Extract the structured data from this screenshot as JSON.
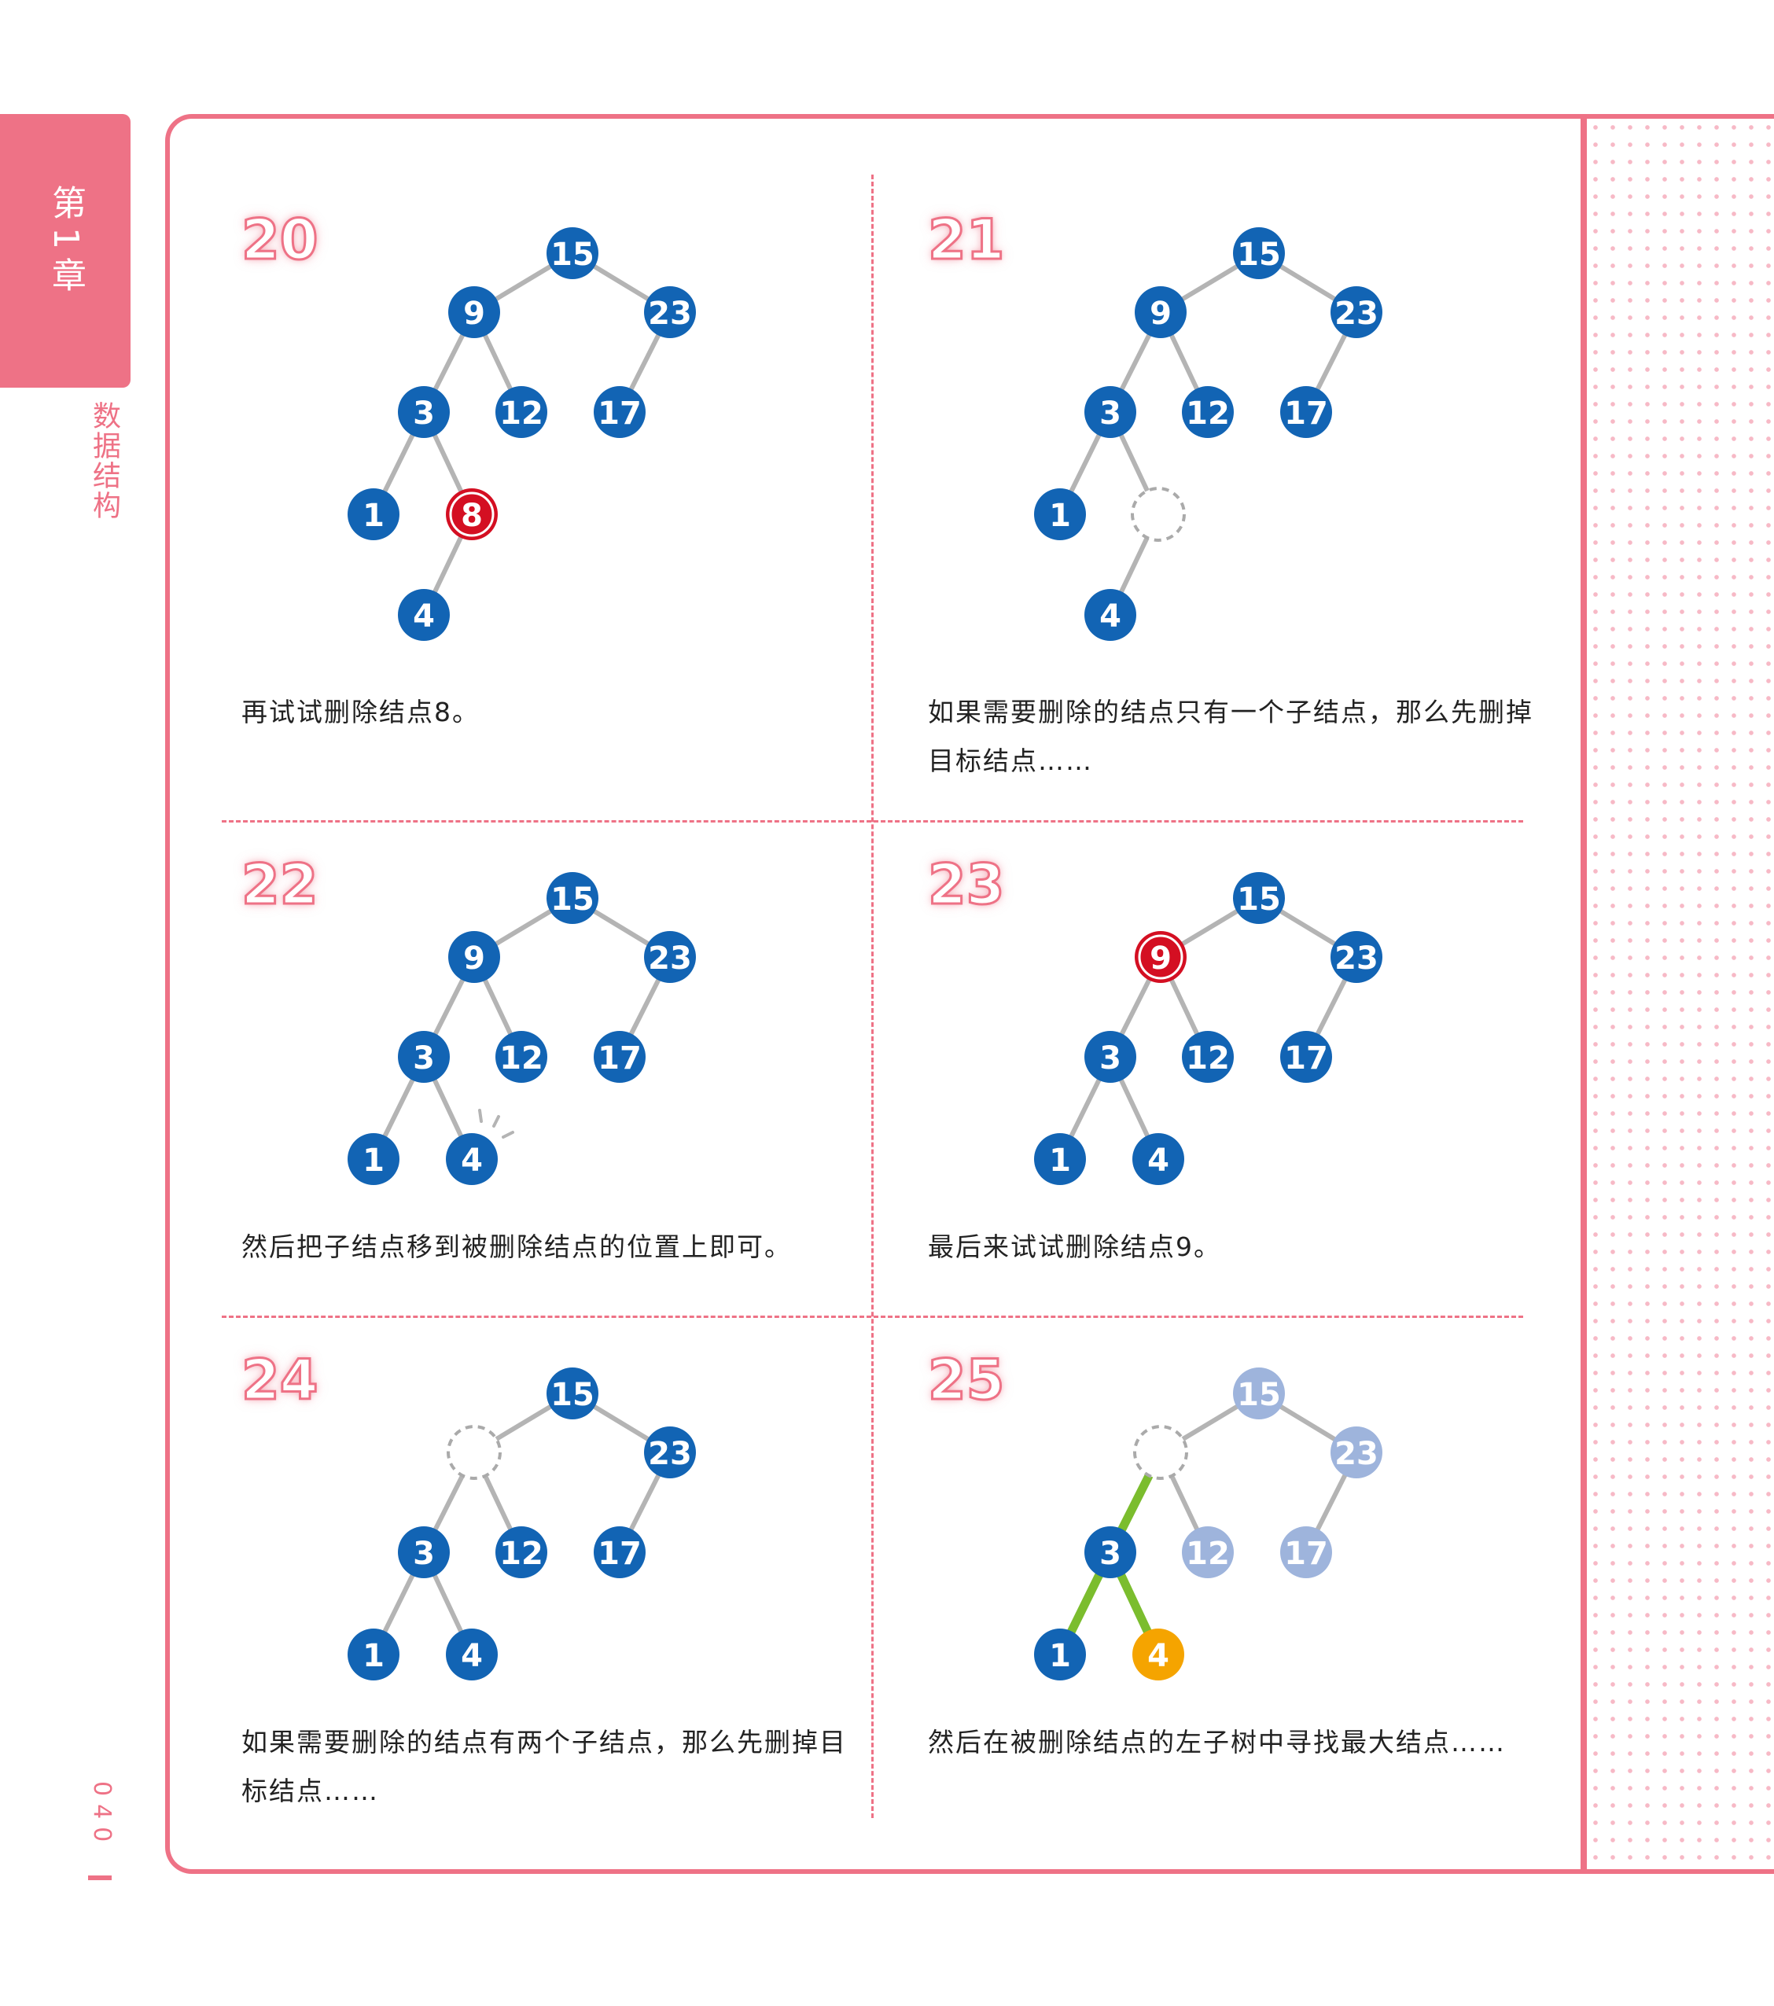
{
  "chapter": {
    "label": "第1章",
    "subtitle": "数据结构"
  },
  "page_number": "040",
  "colors": {
    "accent": "#ee7286",
    "node": "#1264b4",
    "node_faded": "#9eb4dc",
    "node_deleted": "#d40f22",
    "node_highlight": "#f5a400",
    "edge": "#b4b4b4",
    "edge_highlight": "#7bbd2e",
    "placeholder": "#aaaaaa"
  },
  "panels": [
    {
      "number": "20",
      "caption": "再试试删除结点8。",
      "nodes": [
        {
          "id": "n15",
          "label": "15",
          "state": "normal"
        },
        {
          "id": "n9",
          "label": "9",
          "state": "normal"
        },
        {
          "id": "n23",
          "label": "23",
          "state": "normal"
        },
        {
          "id": "n3",
          "label": "3",
          "state": "normal"
        },
        {
          "id": "n12",
          "label": "12",
          "state": "normal"
        },
        {
          "id": "n17",
          "label": "17",
          "state": "normal"
        },
        {
          "id": "n1",
          "label": "1",
          "state": "normal"
        },
        {
          "id": "n8",
          "label": "8",
          "state": "deleted"
        },
        {
          "id": "n4",
          "label": "4",
          "state": "normal"
        }
      ],
      "edges": [
        [
          "n15",
          "n9"
        ],
        [
          "n15",
          "n23"
        ],
        [
          "n9",
          "n3"
        ],
        [
          "n9",
          "n12"
        ],
        [
          "n23",
          "n17"
        ],
        [
          "n3",
          "n1"
        ],
        [
          "n3",
          "n8"
        ],
        [
          "n8",
          "n4"
        ]
      ],
      "highlight_edges": []
    },
    {
      "number": "21",
      "caption": "如果需要删除的结点只有一个子结点，那么先删掉目标结点……",
      "nodes": [
        {
          "id": "n15",
          "label": "15",
          "state": "normal"
        },
        {
          "id": "n9",
          "label": "9",
          "state": "normal"
        },
        {
          "id": "n23",
          "label": "23",
          "state": "normal"
        },
        {
          "id": "n3",
          "label": "3",
          "state": "normal"
        },
        {
          "id": "n12",
          "label": "12",
          "state": "normal"
        },
        {
          "id": "n17",
          "label": "17",
          "state": "normal"
        },
        {
          "id": "n1",
          "label": "1",
          "state": "normal"
        },
        {
          "id": "n8",
          "label": "",
          "state": "empty"
        },
        {
          "id": "n4",
          "label": "4",
          "state": "normal"
        }
      ],
      "edges": [
        [
          "n15",
          "n9"
        ],
        [
          "n15",
          "n23"
        ],
        [
          "n9",
          "n3"
        ],
        [
          "n9",
          "n12"
        ],
        [
          "n23",
          "n17"
        ],
        [
          "n3",
          "n1"
        ],
        [
          "n3",
          "n8"
        ],
        [
          "n8",
          "n4"
        ]
      ],
      "highlight_edges": []
    },
    {
      "number": "22",
      "caption": "然后把子结点移到被删除结点的位置上即可。",
      "nodes": [
        {
          "id": "n15",
          "label": "15",
          "state": "normal"
        },
        {
          "id": "n9",
          "label": "9",
          "state": "normal"
        },
        {
          "id": "n23",
          "label": "23",
          "state": "normal"
        },
        {
          "id": "n3",
          "label": "3",
          "state": "normal"
        },
        {
          "id": "n12",
          "label": "12",
          "state": "normal"
        },
        {
          "id": "n17",
          "label": "17",
          "state": "normal"
        },
        {
          "id": "n1",
          "label": "1",
          "state": "normal"
        },
        {
          "id": "n4m",
          "label": "4",
          "state": "moved"
        }
      ],
      "edges": [
        [
          "n15",
          "n9"
        ],
        [
          "n15",
          "n23"
        ],
        [
          "n9",
          "n3"
        ],
        [
          "n9",
          "n12"
        ],
        [
          "n23",
          "n17"
        ],
        [
          "n3",
          "n1"
        ],
        [
          "n3",
          "n4m"
        ]
      ],
      "highlight_edges": []
    },
    {
      "number": "23",
      "caption": "最后来试试删除结点9。",
      "nodes": [
        {
          "id": "n15",
          "label": "15",
          "state": "normal"
        },
        {
          "id": "n9",
          "label": "9",
          "state": "deleted"
        },
        {
          "id": "n23",
          "label": "23",
          "state": "normal"
        },
        {
          "id": "n3",
          "label": "3",
          "state": "normal"
        },
        {
          "id": "n12",
          "label": "12",
          "state": "normal"
        },
        {
          "id": "n17",
          "label": "17",
          "state": "normal"
        },
        {
          "id": "n1",
          "label": "1",
          "state": "normal"
        },
        {
          "id": "n4m",
          "label": "4",
          "state": "normal"
        }
      ],
      "edges": [
        [
          "n15",
          "n9"
        ],
        [
          "n15",
          "n23"
        ],
        [
          "n9",
          "n3"
        ],
        [
          "n9",
          "n12"
        ],
        [
          "n23",
          "n17"
        ],
        [
          "n3",
          "n1"
        ],
        [
          "n3",
          "n4m"
        ]
      ],
      "highlight_edges": []
    },
    {
      "number": "24",
      "caption": "如果需要删除的结点有两个子结点，那么先删掉目标结点……",
      "nodes": [
        {
          "id": "n15",
          "label": "15",
          "state": "normal"
        },
        {
          "id": "n9",
          "label": "",
          "state": "empty"
        },
        {
          "id": "n23",
          "label": "23",
          "state": "normal"
        },
        {
          "id": "n3",
          "label": "3",
          "state": "normal"
        },
        {
          "id": "n12",
          "label": "12",
          "state": "normal"
        },
        {
          "id": "n17",
          "label": "17",
          "state": "normal"
        },
        {
          "id": "n1",
          "label": "1",
          "state": "normal"
        },
        {
          "id": "n4m",
          "label": "4",
          "state": "normal"
        }
      ],
      "edges": [
        [
          "n15",
          "n9"
        ],
        [
          "n15",
          "n23"
        ],
        [
          "n9",
          "n3"
        ],
        [
          "n9",
          "n12"
        ],
        [
          "n23",
          "n17"
        ],
        [
          "n3",
          "n1"
        ],
        [
          "n3",
          "n4m"
        ]
      ],
      "highlight_edges": []
    },
    {
      "number": "25",
      "caption": "然后在被删除结点的左子树中寻找最大结点……",
      "nodes": [
        {
          "id": "n15",
          "label": "15",
          "state": "faded"
        },
        {
          "id": "n9",
          "label": "",
          "state": "empty"
        },
        {
          "id": "n23",
          "label": "23",
          "state": "faded"
        },
        {
          "id": "n3",
          "label": "3",
          "state": "normal"
        },
        {
          "id": "n12",
          "label": "12",
          "state": "faded"
        },
        {
          "id": "n17",
          "label": "17",
          "state": "faded"
        },
        {
          "id": "n1",
          "label": "1",
          "state": "normal"
        },
        {
          "id": "n4m",
          "label": "4",
          "state": "highlight"
        }
      ],
      "edges": [
        [
          "n15",
          "n9"
        ],
        [
          "n15",
          "n23"
        ],
        [
          "n9",
          "n3"
        ],
        [
          "n9",
          "n12"
        ],
        [
          "n23",
          "n17"
        ],
        [
          "n3",
          "n1"
        ],
        [
          "n3",
          "n4m"
        ]
      ],
      "highlight_edges": [
        [
          "n9",
          "n3"
        ],
        [
          "n3",
          "n1"
        ],
        [
          "n3",
          "n4m"
        ]
      ]
    }
  ]
}
